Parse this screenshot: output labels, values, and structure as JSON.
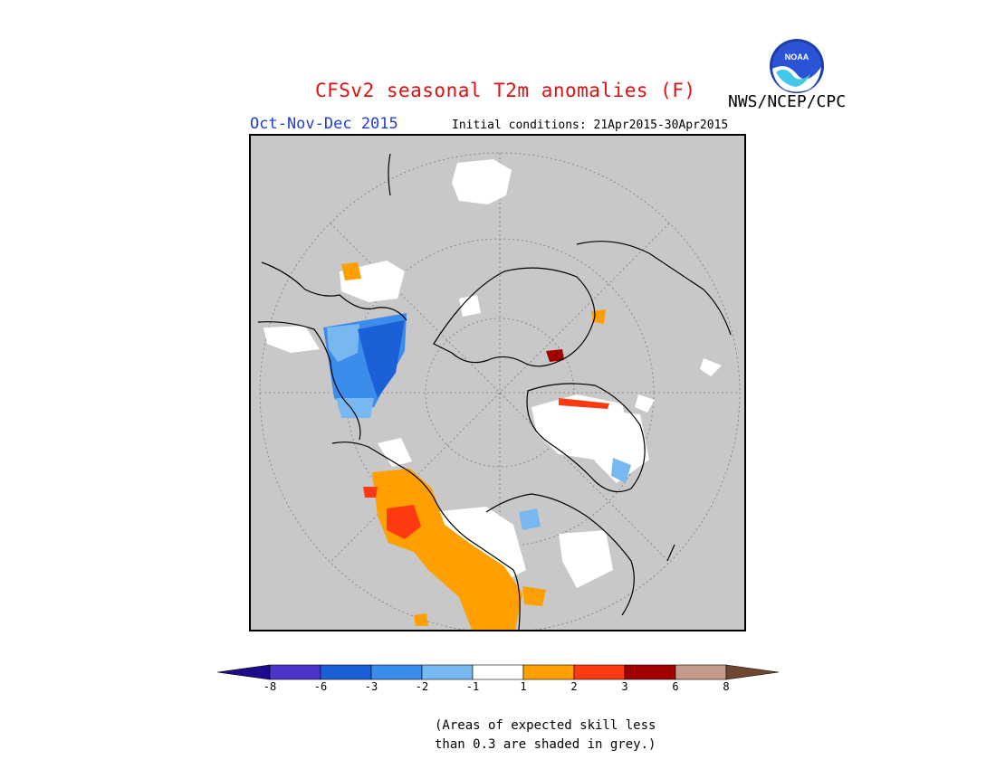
{
  "header": {
    "title": "CFSv2 seasonal T2m anomalies (F)",
    "agency": "NWS/NCEP/CPC",
    "logo_text": "NOAA",
    "season": "Oct-Nov-Dec 2015",
    "initial_conditions": "Initial conditions: 21Apr2015-30Apr2015"
  },
  "map": {
    "projection": "polar stereographic (North Pole)",
    "land_color": "#c8c8c8"
  },
  "legend": {
    "colors": [
      "#1c0c8c",
      "#4c34c8",
      "#1c60d8",
      "#3c8cec",
      "#78b8f0",
      "#ffffff",
      "#ffa000",
      "#ff3a10",
      "#a00000",
      "#c49a8c",
      "#6e4632"
    ],
    "tick_labels": [
      "-8",
      "-6",
      "-3",
      "-2",
      "-1",
      "1",
      "2",
      "3",
      "6",
      "8"
    ]
  },
  "note": {
    "line1": "(Areas of expected skill less",
    "line2": "than 0.3 are shaded in grey.)"
  }
}
